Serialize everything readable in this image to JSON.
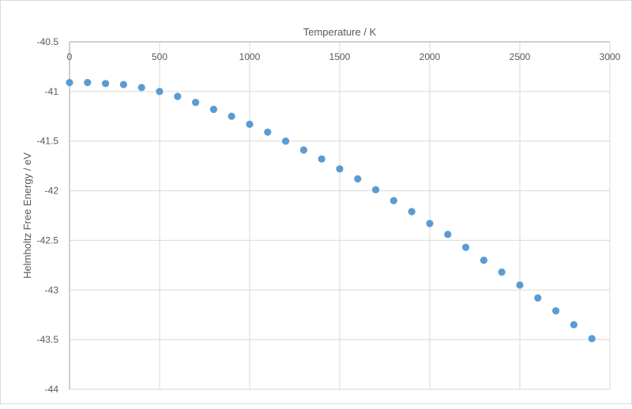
{
  "chart_data": {
    "type": "scatter",
    "title": "",
    "xlabel": "Temperature / K",
    "ylabel": "Helmholtz Free Energy / eV",
    "xlim": [
      0,
      3000
    ],
    "ylim": [
      -44,
      -40.5
    ],
    "x_axis_position": "top",
    "x_ticks": [
      "0",
      "500",
      "1000",
      "1500",
      "2000",
      "2500",
      "3000"
    ],
    "y_ticks": [
      "-40.5",
      "-41",
      "-41.5",
      "-42",
      "-42.5",
      "-43",
      "-43.5",
      "-44"
    ],
    "x_tick_values": [
      0,
      500,
      1000,
      1500,
      2000,
      2500,
      3000
    ],
    "y_tick_values": [
      -40.5,
      -41,
      -41.5,
      -42,
      -42.5,
      -43,
      -43.5,
      -44
    ],
    "grid": true,
    "marker_color": "#5b9bd5",
    "series": [
      {
        "name": "Helmholtz Free Energy",
        "x": [
          0,
          100,
          200,
          300,
          400,
          500,
          600,
          700,
          800,
          900,
          1000,
          1100,
          1200,
          1300,
          1400,
          1500,
          1600,
          1700,
          1800,
          1900,
          2000,
          2100,
          2200,
          2300,
          2400,
          2500,
          2600,
          2700,
          2800,
          2900
        ],
        "y": [
          -40.91,
          -40.91,
          -40.92,
          -40.93,
          -40.96,
          -41.0,
          -41.05,
          -41.11,
          -41.18,
          -41.25,
          -41.33,
          -41.41,
          -41.5,
          -41.59,
          -41.68,
          -41.78,
          -41.88,
          -41.99,
          -42.1,
          -42.21,
          -42.33,
          -42.44,
          -42.57,
          -42.7,
          -42.82,
          -42.95,
          -43.08,
          -43.21,
          -43.35,
          -43.49
        ]
      }
    ]
  }
}
